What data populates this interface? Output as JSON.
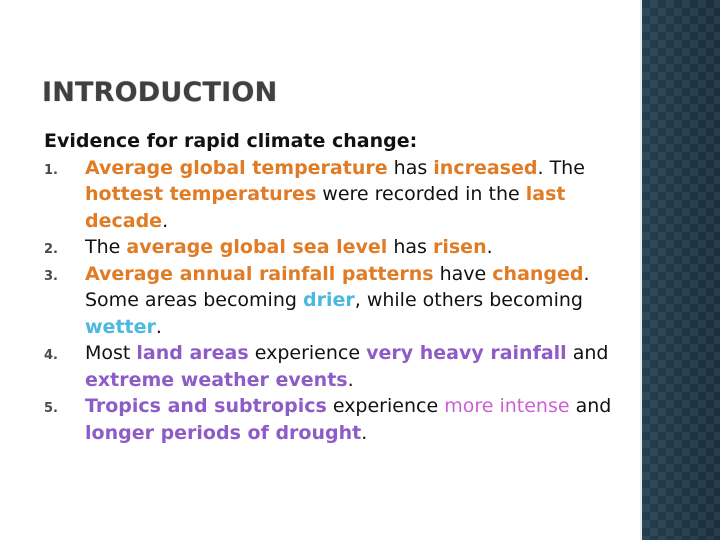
{
  "title": "INTRODUCTION",
  "intro": "Evidence for rapid climate change:",
  "colors": {
    "orange": "#e07b26",
    "blue": "#4cb8e0",
    "purple": "#8e5cc7",
    "pink": "#cc5fd5",
    "side_panel": "#1d3443"
  },
  "items": [
    {
      "num": "1.",
      "parts": [
        "Average global temperature",
        " has ",
        "increased",
        ".  The ",
        "hottest temperatures",
        " were recorded in the ",
        "last decade",
        "."
      ]
    },
    {
      "num": "2.",
      "parts": [
        "The ",
        "average global sea level",
        " has ",
        "risen",
        "."
      ]
    },
    {
      "num": "3.",
      "parts": [
        "Average annual rainfall patterns",
        " have ",
        "changed",
        ". Some areas becoming ",
        "drier",
        ", while others becoming ",
        "wetter",
        "."
      ]
    },
    {
      "num": "4.",
      "parts": [
        "Most ",
        "land areas",
        " experience ",
        "very heavy rainfall",
        " and ",
        "extreme weather events",
        "."
      ]
    },
    {
      "num": "5.",
      "parts": [
        "Tropics and subtropics",
        " experience ",
        "more intense",
        " and ",
        "longer periods of drought",
        "."
      ]
    }
  ]
}
